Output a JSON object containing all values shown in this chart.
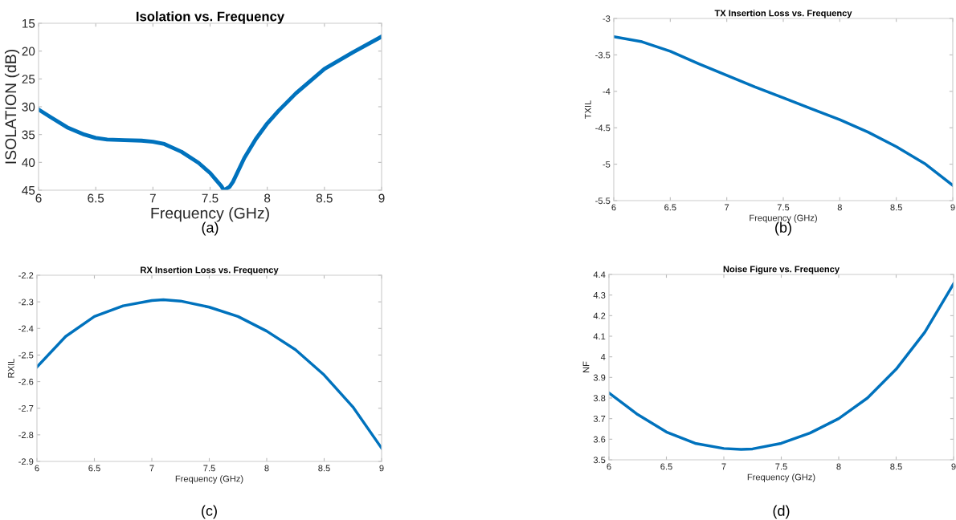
{
  "chart_data": [
    {
      "type": "line",
      "title": "Isolation vs. Frequency",
      "xlabel": "Frequency (GHz)",
      "ylabel": "ISOLATION (dB)",
      "annotations": [
        "(a)"
      ],
      "xlim": [
        6,
        9
      ],
      "xticks": [
        6,
        6.5,
        7,
        7.5,
        8,
        8.5,
        9
      ],
      "ylim": [
        45,
        15
      ],
      "yticks": [
        15,
        20,
        25,
        30,
        35,
        40,
        45
      ],
      "grid": false,
      "marker": "none",
      "line_style": "solid",
      "series": [
        {
          "color": "#0072bd",
          "x": [
            6,
            6.1,
            6.25,
            6.4,
            6.5,
            6.6,
            6.75,
            6.9,
            7,
            7.1,
            7.25,
            7.4,
            7.5,
            7.55,
            7.6,
            7.62,
            7.67,
            7.7,
            7.8,
            7.9,
            8,
            8.1,
            8.25,
            8.5,
            8.75,
            9
          ],
          "values": [
            30.5,
            31.8,
            33.7,
            35,
            35.6,
            35.9,
            36,
            36.1,
            36.3,
            36.7,
            38.1,
            40.1,
            41.9,
            43.1,
            44.3,
            45,
            44.4,
            43.5,
            39.2,
            35.8,
            33,
            30.7,
            27.6,
            23.2,
            20.2,
            17.4
          ]
        }
      ]
    },
    {
      "type": "line",
      "title": "TX Insertion Loss vs. Frequency",
      "xlabel": "Frequency (GHz)",
      "ylabel": "TXIL",
      "annotations": [
        "(b)"
      ],
      "xlim": [
        6,
        9
      ],
      "xticks": [
        6,
        6.5,
        7,
        7.5,
        8,
        8.5,
        9
      ],
      "ylim": [
        -5.5,
        -3
      ],
      "yticks": [
        -5.5,
        -5,
        -4.5,
        -4,
        -3.5,
        -3
      ],
      "grid": false,
      "marker": "none",
      "line_style": "solid",
      "series": [
        {
          "color": "#0072bd",
          "x": [
            6,
            6.25,
            6.5,
            6.75,
            7,
            7.25,
            7.5,
            7.75,
            8,
            8.25,
            8.5,
            8.75,
            9
          ],
          "values": [
            -3.25,
            -3.32,
            -3.45,
            -3.62,
            -3.78,
            -3.94,
            -4.09,
            -4.24,
            -4.39,
            -4.56,
            -4.76,
            -4.99,
            -5.29
          ]
        }
      ]
    },
    {
      "type": "line",
      "title": "RX Insertion Loss vs. Frequency",
      "xlabel": "Frequency (GHz)",
      "ylabel": "RXIL",
      "annotations": [
        "(c)"
      ],
      "xlim": [
        6,
        9
      ],
      "xticks": [
        6,
        6.5,
        7,
        7.5,
        8,
        8.5,
        9
      ],
      "ylim": [
        -2.9,
        -2.2
      ],
      "yticks": [
        -2.9,
        -2.8,
        -2.7,
        -2.6,
        -2.5,
        -2.4,
        -2.3,
        -2.2
      ],
      "grid": false,
      "marker": "none",
      "line_style": "solid",
      "series": [
        {
          "color": "#0072bd",
          "x": [
            6,
            6.25,
            6.5,
            6.75,
            7,
            7.1,
            7.25,
            7.5,
            7.75,
            8,
            8.25,
            8.5,
            8.75,
            9
          ],
          "values": [
            -2.545,
            -2.43,
            -2.355,
            -2.315,
            -2.295,
            -2.292,
            -2.297,
            -2.32,
            -2.355,
            -2.41,
            -2.48,
            -2.575,
            -2.695,
            -2.85
          ]
        }
      ]
    },
    {
      "type": "line",
      "title": "Noise Figure vs. Frequency",
      "xlabel": "Frequency (GHz)",
      "ylabel": "NF",
      "annotations": [
        "(d)"
      ],
      "xlim": [
        6,
        9
      ],
      "xticks": [
        6,
        6.5,
        7,
        7.5,
        8,
        8.5,
        9
      ],
      "ylim": [
        3.5,
        4.4
      ],
      "yticks": [
        3.5,
        3.6,
        3.7,
        3.8,
        3.9,
        4,
        4.1,
        4.2,
        4.3,
        4.4
      ],
      "grid": false,
      "marker": "none",
      "line_style": "solid",
      "series": [
        {
          "color": "#0072bd",
          "x": [
            6,
            6.25,
            6.5,
            6.75,
            7,
            7.15,
            7.25,
            7.5,
            7.75,
            8,
            8.25,
            8.5,
            8.75,
            9
          ],
          "values": [
            3.825,
            3.72,
            3.635,
            3.58,
            3.555,
            3.551,
            3.553,
            3.58,
            3.63,
            3.7,
            3.8,
            3.94,
            4.12,
            4.355
          ]
        }
      ]
    }
  ]
}
